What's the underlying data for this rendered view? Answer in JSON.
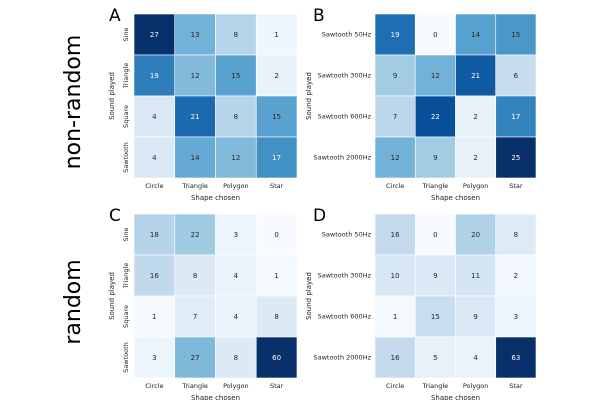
{
  "figure": {
    "row_labels": [
      "non-random",
      "random"
    ]
  },
  "chart_data": [
    {
      "type": "heatmap",
      "panel": "A",
      "group": "non-random",
      "xlabel": "Shape chosen",
      "ylabel": "Sound played",
      "x_categories": [
        "Circle",
        "Triangle",
        "Polygon",
        "Star"
      ],
      "y_categories": [
        "Sine",
        "Triangle",
        "Square",
        "Sawtooth"
      ],
      "y_tick_rotated": true,
      "values": [
        [
          27,
          13,
          8,
          1
        ],
        [
          19,
          12,
          15,
          2
        ],
        [
          4,
          21,
          8,
          15
        ],
        [
          4,
          14,
          12,
          17
        ]
      ],
      "colormap": "Blues",
      "vmax": 27
    },
    {
      "type": "heatmap",
      "panel": "B",
      "group": "non-random",
      "xlabel": "Shape chosen",
      "ylabel": "Sound played",
      "x_categories": [
        "Circle",
        "Triangle",
        "Polygon",
        "Star"
      ],
      "y_categories": [
        "Sawtooth 50Hz",
        "Sawtooth 300Hz",
        "Sawtooth 600Hz",
        "Sawtooth 2000Hz"
      ],
      "y_tick_rotated": false,
      "values": [
        [
          19,
          0,
          14,
          15
        ],
        [
          9,
          12,
          21,
          6
        ],
        [
          7,
          22,
          2,
          17
        ],
        [
          12,
          9,
          2,
          25
        ]
      ],
      "colormap": "Blues",
      "vmax": 25
    },
    {
      "type": "heatmap",
      "panel": "C",
      "group": "random",
      "xlabel": "Shape chosen",
      "ylabel": "Sound played",
      "x_categories": [
        "Circle",
        "Triangle",
        "Polygon",
        "Star"
      ],
      "y_categories": [
        "Sine",
        "Triangle",
        "Square",
        "Sawtooth"
      ],
      "y_tick_rotated": true,
      "values": [
        [
          18,
          22,
          3,
          0
        ],
        [
          16,
          8,
          4,
          1
        ],
        [
          1,
          7,
          4,
          8
        ],
        [
          3,
          27,
          8,
          60
        ]
      ],
      "colormap": "Blues",
      "vmax": 60
    },
    {
      "type": "heatmap",
      "panel": "D",
      "group": "random",
      "xlabel": "Shape chosen",
      "ylabel": "Sound played",
      "x_categories": [
        "Circle",
        "Triangle",
        "Polygon",
        "Star"
      ],
      "y_categories": [
        "Sawtooth 50Hz",
        "Sawtooth 300Hz",
        "Sawtooth 600Hz",
        "Sawtooth 2000Hz"
      ],
      "y_tick_rotated": false,
      "values": [
        [
          16,
          0,
          20,
          8
        ],
        [
          10,
          9,
          11,
          2
        ],
        [
          1,
          15,
          9,
          3
        ],
        [
          16,
          5,
          4,
          63
        ]
      ],
      "colormap": "Blues",
      "vmax": 63
    }
  ]
}
